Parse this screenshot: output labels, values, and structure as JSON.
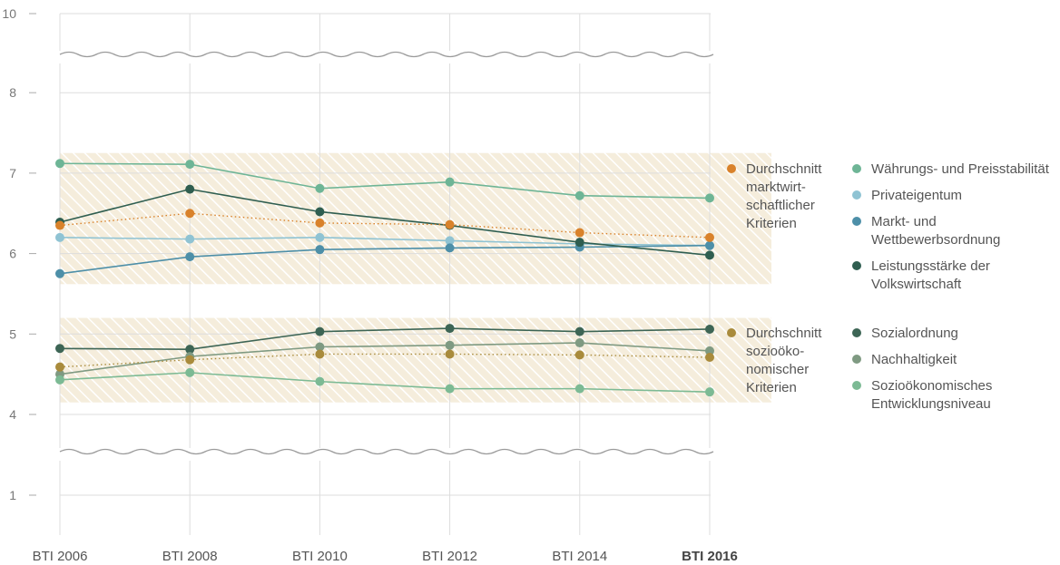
{
  "chart_data": {
    "type": "line",
    "categories": [
      "BTI 2006",
      "BTI 2008",
      "BTI 2010",
      "BTI 2012",
      "BTI 2014",
      "BTI 2016"
    ],
    "bold_category": "BTI 2016",
    "y_ticks": [
      "1",
      "4",
      "5",
      "6",
      "7",
      "8",
      "10"
    ],
    "y_axis_breaks": [
      [
        1,
        4
      ],
      [
        8,
        10
      ]
    ],
    "grid": true,
    "legend_position": "right",
    "bands": [
      {
        "name": "marktwirtschaftlich",
        "ylim": [
          5.62,
          7.25
        ],
        "color": "#f3ead8"
      },
      {
        "name": "soziooekonomisch",
        "ylim": [
          4.15,
          5.2
        ],
        "color": "#f3ead8"
      }
    ],
    "series": [
      {
        "name": "Währungs- und Preisstabilität",
        "values": [
          7.12,
          7.11,
          6.81,
          6.89,
          6.72,
          6.69
        ],
        "color": "#6eb596",
        "style": "solid"
      },
      {
        "name": "Privateigentum",
        "values": [
          6.2,
          6.18,
          6.2,
          6.16,
          6.12,
          6.1
        ],
        "color": "#8fc3d3",
        "style": "solid"
      },
      {
        "name": "Markt- und Wettbewerbsordnung",
        "values": [
          5.75,
          5.96,
          6.05,
          6.07,
          6.08,
          6.1
        ],
        "color": "#4d8fa8",
        "style": "solid"
      },
      {
        "name": "Leistungsstärke der Volkswirtschaft",
        "values": [
          6.39,
          6.8,
          6.52,
          6.35,
          6.14,
          5.98
        ],
        "color": "#2f5e50",
        "style": "solid"
      },
      {
        "name": "Durchschnitt marktwirtschaftlicher Kriterien",
        "values": [
          6.35,
          6.5,
          6.38,
          6.36,
          6.26,
          6.2
        ],
        "color": "#d9822b",
        "style": "dotted"
      },
      {
        "name": "Sozialordnung",
        "values": [
          4.82,
          4.81,
          5.03,
          5.07,
          5.03,
          5.06
        ],
        "color": "#3d6555",
        "style": "solid"
      },
      {
        "name": "Nachhaltigkeit",
        "values": [
          4.5,
          4.72,
          4.84,
          4.86,
          4.89,
          4.79
        ],
        "color": "#7f9a82",
        "style": "solid"
      },
      {
        "name": "Sozioökonomisches Entwicklungsniveau",
        "values": [
          4.43,
          4.52,
          4.41,
          4.32,
          4.32,
          4.28
        ],
        "color": "#7cba94",
        "style": "solid"
      },
      {
        "name": "Durchschnitt sozioökonomischer Kriterien",
        "values": [
          4.59,
          4.68,
          4.75,
          4.75,
          4.74,
          4.71
        ],
        "color": "#a98b3c",
        "style": "dotted"
      }
    ]
  },
  "legend": {
    "avg_market": [
      "Durchschnitt",
      "marktwirt-",
      "schaftlicher",
      "Kriterien"
    ],
    "avg_socio": [
      "Durchschnitt",
      "sozioöko-",
      "nomischer",
      "Kriterien"
    ],
    "market_items": [
      {
        "lines": [
          "Währungs- und Preisstabilität"
        ],
        "color": "#6eb596"
      },
      {
        "lines": [
          "Privateigentum"
        ],
        "color": "#8fc3d3"
      },
      {
        "lines": [
          "Markt- und",
          "Wettbewerbsordnung"
        ],
        "color": "#4d8fa8"
      },
      {
        "lines": [
          "Leistungsstärke der",
          "Volkswirtschaft"
        ],
        "color": "#2f5e50"
      }
    ],
    "socio_items": [
      {
        "lines": [
          "Sozialordnung"
        ],
        "color": "#3d6555"
      },
      {
        "lines": [
          "Nachhaltigkeit"
        ],
        "color": "#7f9a82"
      },
      {
        "lines": [
          "Sozioökonomisches",
          "Entwicklungsniveau"
        ],
        "color": "#7cba94"
      }
    ]
  }
}
